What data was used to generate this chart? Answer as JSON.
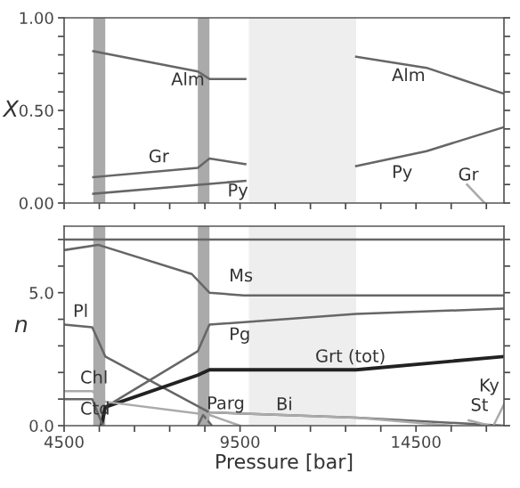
{
  "chart_data": [
    {
      "type": "line",
      "ylabel": "X",
      "xlim": [
        4500,
        17000
      ],
      "ylim": [
        0,
        1.0
      ],
      "tick_labels": "y",
      "xticks": [
        4500,
        {
          "value": 5500,
          "label": null
        },
        {
          "value": 6500,
          "label": null
        },
        {
          "value": 7500,
          "label": null
        },
        {
          "value": 8500,
          "label": null
        },
        9500,
        {
          "value": 10500,
          "label": null
        },
        {
          "value": 11500,
          "label": null
        },
        {
          "value": 12500,
          "label": null
        },
        {
          "value": 13500,
          "label": null
        },
        14500,
        {
          "value": 15500,
          "label": null
        },
        {
          "value": 16500,
          "label": null
        }
      ],
      "yticks": [
        {
          "value": 0,
          "label": "0.00"
        },
        {
          "value": 0.1,
          "label": null
        },
        {
          "value": 0.2,
          "label": null
        },
        {
          "value": 0.3,
          "label": null
        },
        {
          "value": 0.4,
          "label": null
        },
        {
          "value": 0.5,
          "label": "0.50"
        },
        {
          "value": 0.6,
          "label": null
        },
        {
          "value": 0.7,
          "label": null
        },
        {
          "value": 0.8,
          "label": null
        },
        {
          "value": 0.9,
          "label": null
        },
        {
          "value": 1.0,
          "label": "1.00"
        }
      ],
      "bands": [
        {
          "axis": "x",
          "from": 5330,
          "to": 5670,
          "color": "#aaaaaa"
        },
        {
          "axis": "x",
          "from": 8300,
          "to": 8630,
          "color": "#aaaaaa"
        },
        {
          "axis": "x",
          "from": 9750,
          "to": 12800,
          "color": "#eeeeee"
        }
      ],
      "series": [
        {
          "name": "Alm",
          "color": "#666666",
          "x": [
            5330,
            8300,
            8630,
            9650
          ],
          "values": [
            0.82,
            0.71,
            0.67,
            0.67
          ]
        },
        {
          "name": "Alm",
          "color": "#666666",
          "x": [
            12800,
            14800,
            17000
          ],
          "values": [
            0.79,
            0.73,
            0.59
          ]
        },
        {
          "name": "Gr",
          "color": "#666666",
          "x": [
            5330,
            8300,
            8630,
            9650
          ],
          "values": [
            0.14,
            0.19,
            0.24,
            0.21
          ]
        },
        {
          "name": "Py",
          "color": "#666666",
          "x": [
            5330,
            9650
          ],
          "values": [
            0.05,
            0.12
          ]
        },
        {
          "name": "Py",
          "color": "#666666",
          "x": [
            12800,
            14800,
            17000
          ],
          "values": [
            0.2,
            0.28,
            0.41
          ]
        },
        {
          "name": "Gr",
          "color": "#aaaaaa",
          "x": [
            15950,
            16450
          ],
          "values": [
            0.1,
            0.0
          ]
        }
      ]
    },
    {
      "type": "line",
      "ylabel": "n",
      "xlabel": "Pressure [bar]",
      "xlim": [
        4500,
        17000
      ],
      "ylim": [
        0,
        7.5
      ],
      "xticks": [
        4500,
        {
          "value": 5500,
          "label": null
        },
        {
          "value": 6500,
          "label": null
        },
        {
          "value": 7500,
          "label": null
        },
        {
          "value": 8500,
          "label": null
        },
        9500,
        {
          "value": 10500,
          "label": null
        },
        {
          "value": 11500,
          "label": null
        },
        {
          "value": 12500,
          "label": null
        },
        {
          "value": 13500,
          "label": null
        },
        14500,
        {
          "value": 15500,
          "label": null
        },
        {
          "value": 16500,
          "label": null
        }
      ],
      "yticks": [
        {
          "value": 0,
          "label": "0.0"
        },
        {
          "value": 1,
          "label": null
        },
        {
          "value": 2,
          "label": null
        },
        {
          "value": 3,
          "label": null
        },
        {
          "value": 4,
          "label": null
        },
        {
          "value": 5,
          "label": "5.0"
        },
        {
          "value": 6,
          "label": null
        },
        {
          "value": 7,
          "label": null
        }
      ],
      "bands": [
        {
          "axis": "x",
          "from": 5330,
          "to": 5670,
          "color": "#aaaaaa"
        },
        {
          "axis": "x",
          "from": 8300,
          "to": 8630,
          "color": "#aaaaaa"
        },
        {
          "axis": "x",
          "from": 9750,
          "to": 12800,
          "color": "#eeeeee"
        }
      ],
      "series": [
        {
          "color": "#666666",
          "x": [
            4500,
            17000
          ],
          "values": [
            7.0,
            7.0
          ]
        },
        {
          "name": "Ms",
          "color": "#666666",
          "x": [
            4500,
            5465,
            8130,
            8630,
            9600,
            17000
          ],
          "values": [
            6.6,
            6.8,
            5.7,
            5.0,
            4.9,
            4.9
          ]
        },
        {
          "name": "Pl",
          "color": "#666666",
          "x": [
            4500,
            5300,
            5670,
            8630,
            12800,
            17000
          ],
          "values": [
            3.8,
            3.7,
            2.6,
            0.5,
            0.3,
            0.0
          ]
        },
        {
          "name": "Pg",
          "color": "#666666",
          "x": [
            5560,
            5670,
            8300,
            8630,
            12800,
            17000
          ],
          "values": [
            0.0,
            0.7,
            2.8,
            3.8,
            4.2,
            4.4
          ]
        },
        {
          "name": "Grt (tot)",
          "color": "#222222",
          "x": [
            5560,
            5670,
            8300,
            8630,
            12800,
            17000
          ],
          "values": [
            0.0,
            0.7,
            1.9,
            2.1,
            2.1,
            2.6
          ]
        },
        {
          "name": "Chl",
          "color": "#aaaaaa",
          "x": [
            4500,
            5300,
            5670,
            8630,
            9500
          ],
          "values": [
            1.3,
            1.3,
            0.9,
            0.4,
            0.0
          ]
        },
        {
          "name": "Ctd",
          "color": "#666666",
          "x": [
            4500,
            5300,
            5600
          ],
          "values": [
            1.0,
            1.0,
            0.0
          ]
        },
        {
          "name": "Parg",
          "color": "#666666",
          "x": [
            8300,
            8450,
            8700
          ],
          "values": [
            0.0,
            0.4,
            0.0
          ]
        },
        {
          "name": "Bi",
          "color": "#aaaaaa",
          "x": [
            8500,
            8630,
            12800,
            15500
          ],
          "values": [
            0.0,
            0.5,
            0.3,
            0.0
          ]
        },
        {
          "name": "St",
          "color": "#aaaaaa",
          "x": [
            16000,
            16600
          ],
          "values": [
            0.2,
            0.0
          ]
        },
        {
          "name": "Ky",
          "color": "#aaaaaa",
          "x": [
            16700,
            17000
          ],
          "values": [
            0.0,
            0.8
          ]
        }
      ]
    }
  ]
}
